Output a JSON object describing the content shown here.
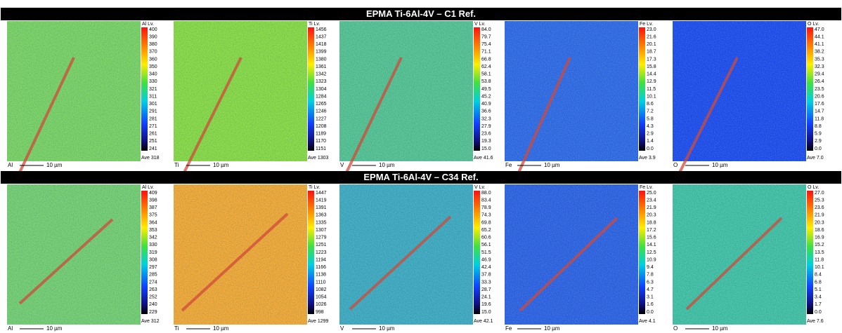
{
  "rows": [
    {
      "title": "EPMA Ti-6Al-4V – C1 Ref.",
      "panels": [
        {
          "element": "Al",
          "legend_title": "Al Lv.",
          "scale_text": "10 µm",
          "average": "Ave 318",
          "levels": [
            "400",
            "390",
            "380",
            "370",
            "360",
            "350",
            "340",
            "330",
            "321",
            "311",
            "301",
            "291",
            "281",
            "271",
            "261",
            "251",
            "241"
          ]
        },
        {
          "element": "Ti",
          "legend_title": "Ti Lv.",
          "scale_text": "10 µm",
          "average": "Ave 1303",
          "levels": [
            "1456",
            "1437",
            "1418",
            "1399",
            "1380",
            "1361",
            "1342",
            "1323",
            "1304",
            "1284",
            "1265",
            "1246",
            "1227",
            "1208",
            "1189",
            "1170",
            "1151"
          ]
        },
        {
          "element": "V",
          "legend_title": "V Lv.",
          "scale_text": "10 µm",
          "average": "Ave 41.6",
          "levels": [
            "84.0",
            "79.7",
            "75.4",
            "71.1",
            "66.8",
            "62.4",
            "58.1",
            "53.8",
            "49.5",
            "45.2",
            "40.9",
            "36.6",
            "32.3",
            "27.9",
            "23.6",
            "19.3",
            "15.0"
          ]
        },
        {
          "element": "Fe",
          "legend_title": "Fe Lv.",
          "scale_text": "10 µm",
          "average": "Ave 3.9",
          "levels": [
            "23.0",
            "21.6",
            "20.1",
            "18.7",
            "17.3",
            "15.8",
            "14.4",
            "12.9",
            "11.5",
            "10.1",
            "8.6",
            "7.2",
            "5.8",
            "4.3",
            "2.9",
            "1.4",
            "0.0"
          ]
        },
        {
          "element": "O",
          "legend_title": "O Lv.",
          "scale_text": "10 µm",
          "average": "Ave 7.0",
          "levels": [
            "47.0",
            "44.1",
            "41.1",
            "38.2",
            "35.3",
            "32.3",
            "29.4",
            "26.4",
            "23.5",
            "20.6",
            "17.6",
            "14.7",
            "11.8",
            "8.8",
            "5.9",
            "2.9",
            "0.0"
          ]
        }
      ]
    },
    {
      "title": "EPMA Ti-6Al-4V – C34 Ref.",
      "panels": [
        {
          "element": "Al",
          "legend_title": "Al Lv.",
          "scale_text": "10 µm",
          "average": "Ave 312",
          "levels": [
            "409",
            "398",
            "387",
            "375",
            "364",
            "353",
            "342",
            "330",
            "319",
            "308",
            "297",
            "285",
            "274",
            "263",
            "252",
            "240",
            "229"
          ]
        },
        {
          "element": "Ti",
          "legend_title": "Ti Lv.",
          "scale_text": "10 µm",
          "average": "Ave 1299",
          "levels": [
            "1447",
            "1419",
            "1391",
            "1363",
            "1335",
            "1307",
            "1279",
            "1251",
            "1223",
            "1194",
            "1166",
            "1138",
            "1110",
            "1082",
            "1054",
            "1026",
            "998"
          ]
        },
        {
          "element": "V",
          "legend_title": "V Lv.",
          "scale_text": "10 µm",
          "average": "Ave 42.1",
          "levels": [
            "88.0",
            "83.4",
            "78.9",
            "74.3",
            "69.8",
            "65.2",
            "60.6",
            "56.1",
            "51.5",
            "46.9",
            "42.4",
            "37.8",
            "33.3",
            "28.7",
            "24.1",
            "19.6",
            "15.0"
          ]
        },
        {
          "element": "Fe",
          "legend_title": "Fe Lv.",
          "scale_text": "10 µm",
          "average": "Ave 4.1",
          "levels": [
            "25.0",
            "23.4",
            "21.9",
            "20.3",
            "18.8",
            "17.2",
            "15.6",
            "14.1",
            "12.5",
            "10.9",
            "9.4",
            "7.8",
            "6.3",
            "4.7",
            "3.1",
            "1.6",
            "0.0"
          ]
        },
        {
          "element": "O",
          "legend_title": "O Lv.",
          "scale_text": "10 µm",
          "average": "Ave 7.6",
          "levels": [
            "27.0",
            "25.3",
            "23.6",
            "21.9",
            "20.3",
            "18.6",
            "16.9",
            "15.2",
            "13.5",
            "11.8",
            "10.1",
            "8.4",
            "6.8",
            "5.1",
            "3.4",
            "1.7",
            "0.0"
          ]
        }
      ]
    }
  ]
}
